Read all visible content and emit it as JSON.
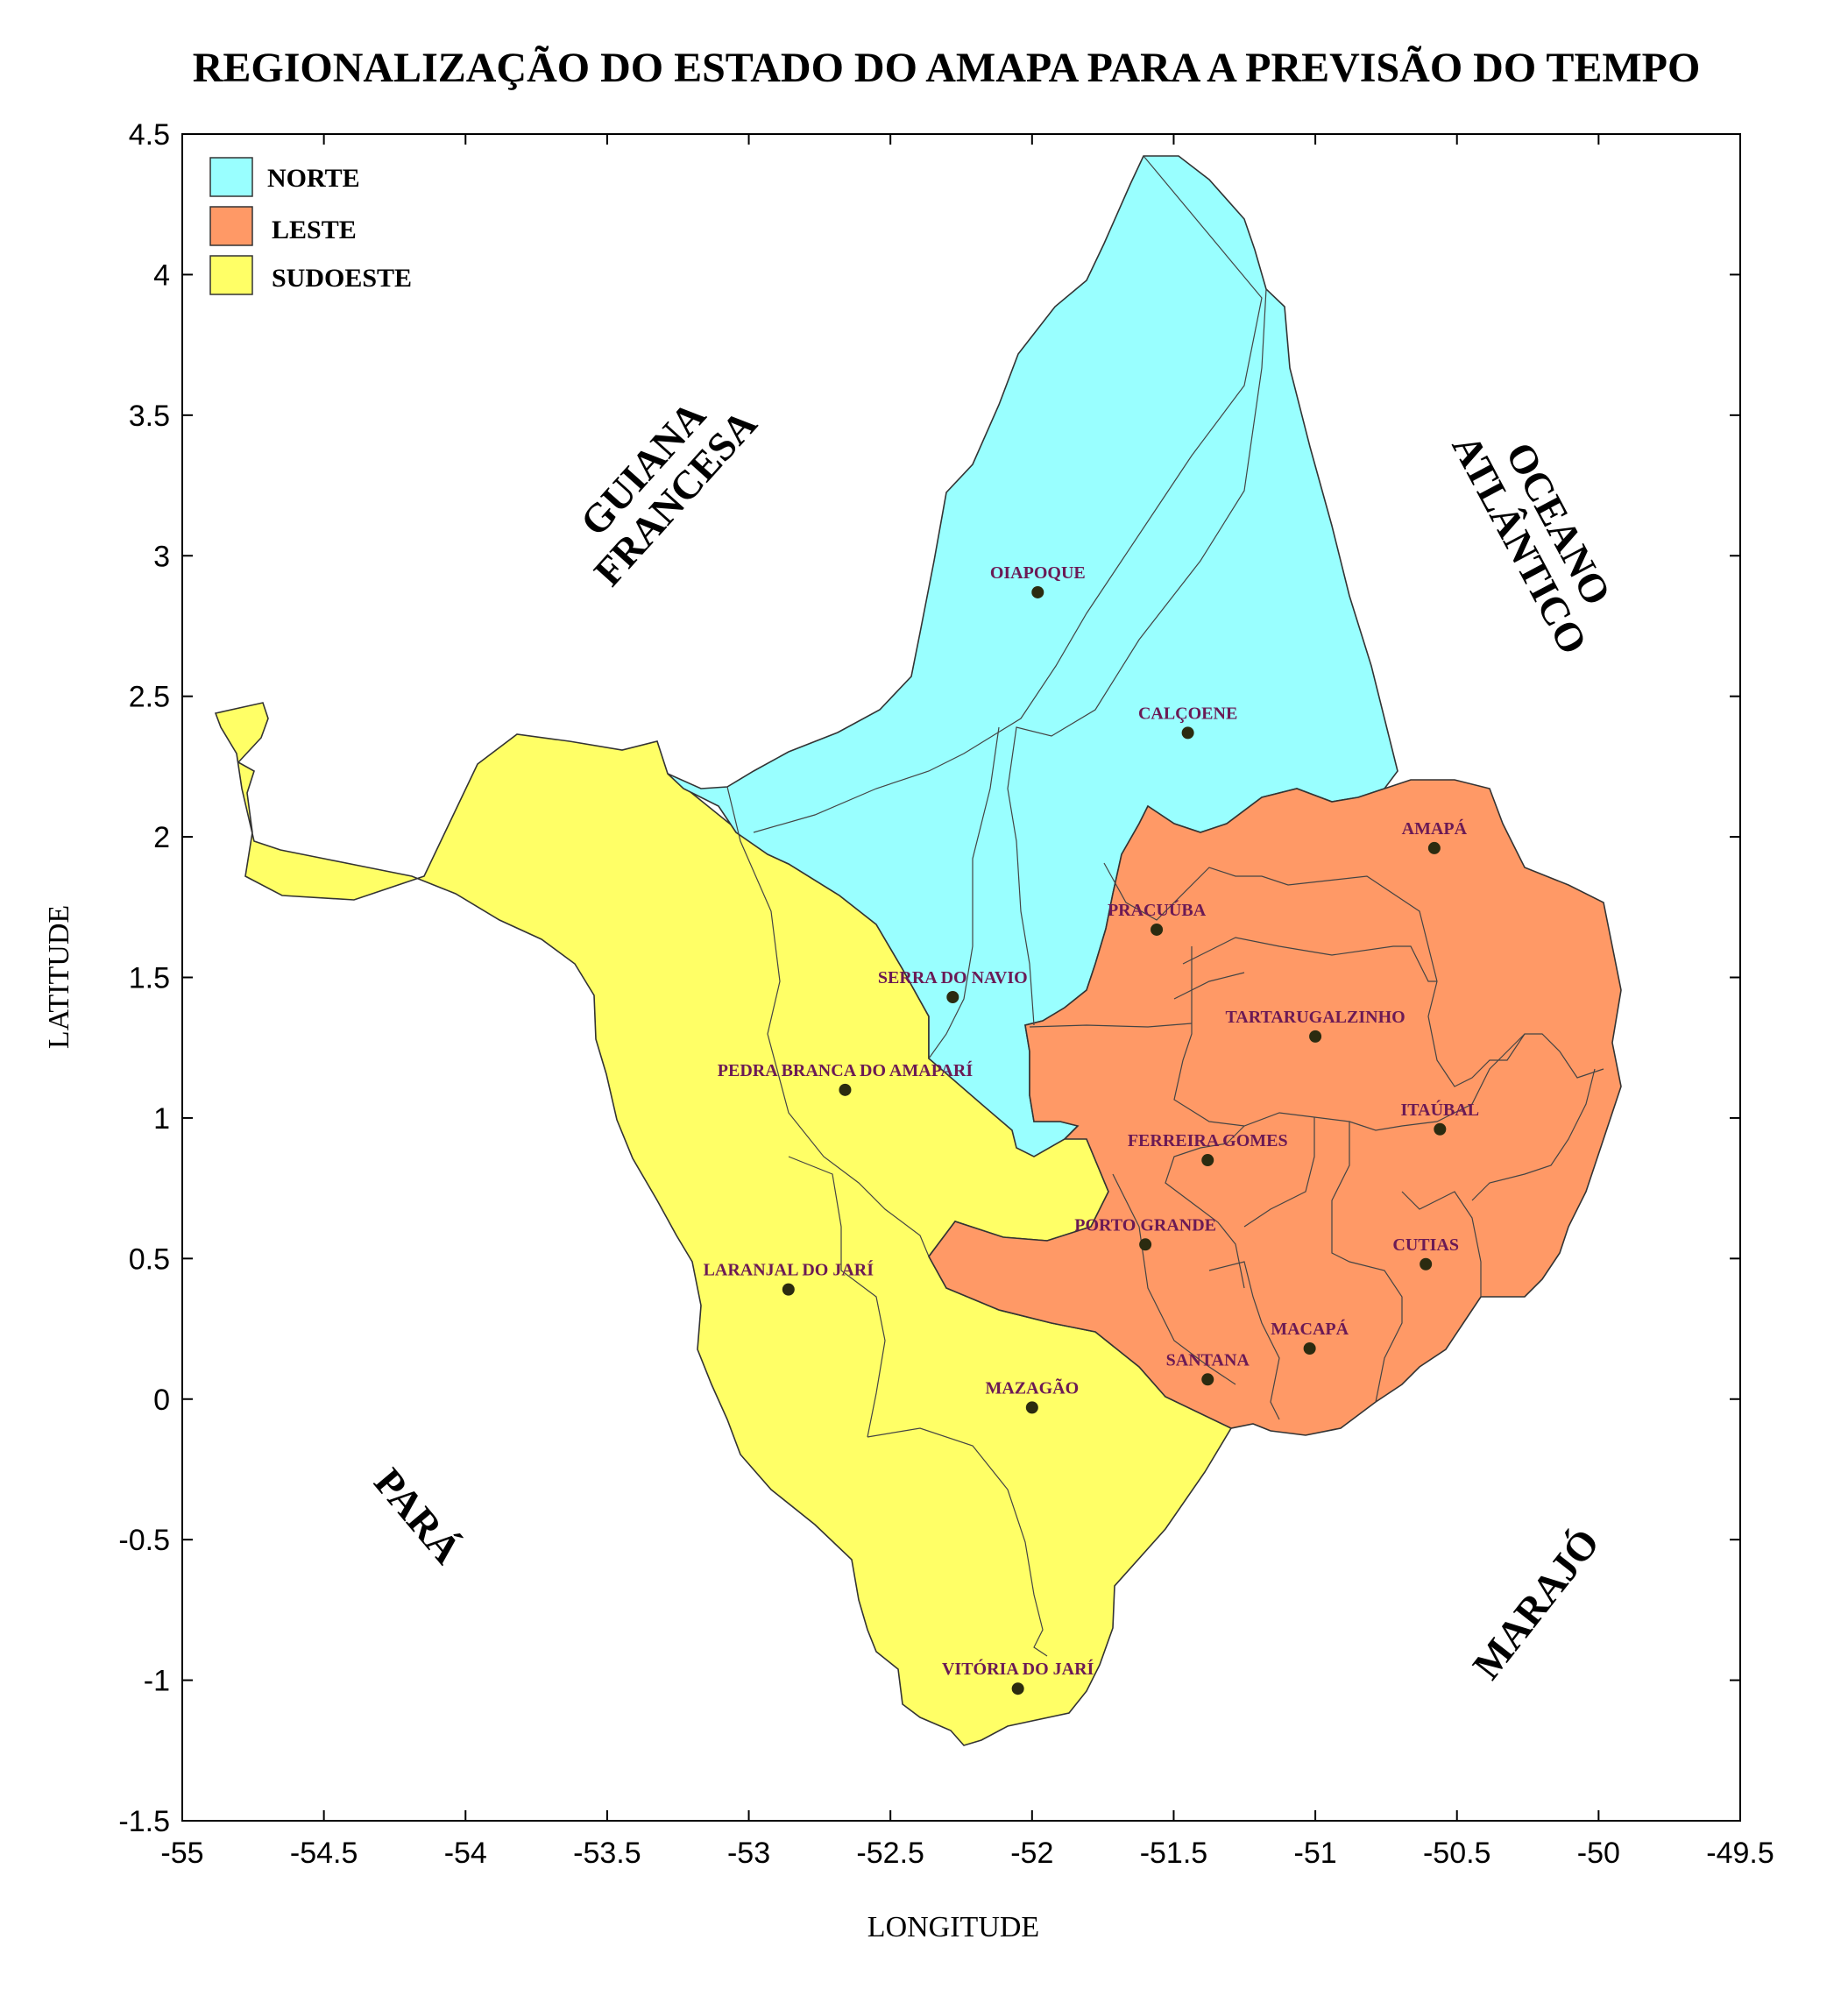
{
  "title": "REGIONALIZAÇÃO DO ESTADO DO AMAPA PARA A PREVISÃO DO TEMPO",
  "axes": {
    "xlabel": "LONGITUDE",
    "ylabel": "LATITUDE",
    "xlim": [
      -55,
      -49.5
    ],
    "ylim": [
      -1.5,
      4.5
    ],
    "x_ticks": [
      "-55",
      "-54.5",
      "-54",
      "-53.5",
      "-53",
      "-52.5",
      "-52",
      "-51.5",
      "-51",
      "-50.5",
      "-50",
      "-49.5"
    ],
    "y_ticks": [
      "4.5",
      "4",
      "3.5",
      "3",
      "2.5",
      "2",
      "1.5",
      "1",
      "0.5",
      "0",
      "-0.5",
      "-1",
      "-1.5"
    ]
  },
  "legend": {
    "placement": "top-left",
    "items": [
      {
        "label": "NORTE",
        "color": "#99ffff"
      },
      {
        "label": "LESTE",
        "color": "#ff9966"
      },
      {
        "label": "SUDOESTE",
        "color": "#ffff66"
      }
    ]
  },
  "neighbors": {
    "guiana_line1": "GUIANA",
    "guiana_line2": "FRANCESA",
    "oceano_line1": "OCEANO",
    "oceano_line2": "ATLÂNTICO",
    "para": "PARÁ",
    "marajo": "MARAJÓ"
  },
  "cities": [
    {
      "name": "OIAPOQUE",
      "lon": -51.98,
      "lat": 2.87
    },
    {
      "name": "CALÇOENE",
      "lon": -51.45,
      "lat": 2.37
    },
    {
      "name": "AMAPÁ",
      "lon": -50.58,
      "lat": 1.96
    },
    {
      "name": "PRACUÚBA",
      "lon": -51.56,
      "lat": 1.67
    },
    {
      "name": "SERRA DO NAVIO",
      "lon": -52.28,
      "lat": 1.43
    },
    {
      "name": "TARTARUGALZINHO",
      "lon": -51.0,
      "lat": 1.29
    },
    {
      "name": "PEDRA BRANCA DO AMAPARÍ",
      "lon": -52.66,
      "lat": 1.1
    },
    {
      "name": "ITAÚBAL",
      "lon": -50.56,
      "lat": 0.96
    },
    {
      "name": "FERREIRA GOMES",
      "lon": -51.38,
      "lat": 0.85
    },
    {
      "name": "PORTO GRANDE",
      "lon": -51.6,
      "lat": 0.55
    },
    {
      "name": "CUTIAS",
      "lon": -50.61,
      "lat": 0.48
    },
    {
      "name": "LARANJAL DO JARÍ",
      "lon": -52.86,
      "lat": 0.39
    },
    {
      "name": "MACAPÁ",
      "lon": -51.02,
      "lat": 0.18
    },
    {
      "name": "SANTANA",
      "lon": -51.38,
      "lat": 0.07
    },
    {
      "name": "MAZAGÃO",
      "lon": -52.0,
      "lat": -0.03
    },
    {
      "name": "VITÓRIA DO JARÍ",
      "lon": -52.05,
      "lat": -1.03
    }
  ]
}
